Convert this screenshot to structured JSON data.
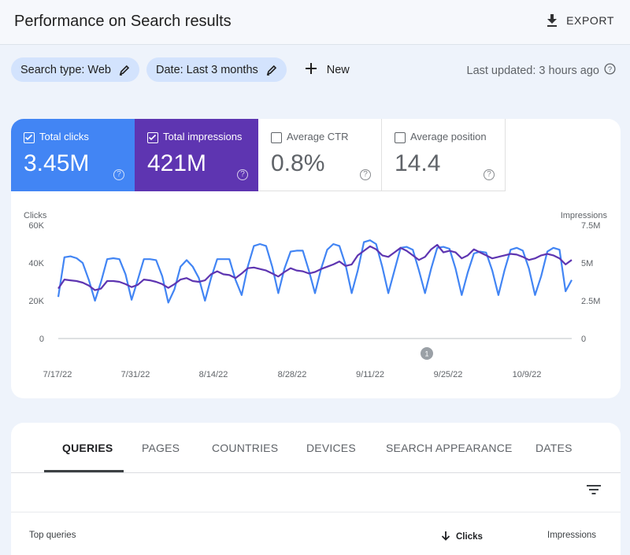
{
  "header": {
    "title": "Performance on Search results",
    "export_label": "EXPORT",
    "export_icon": "download-icon"
  },
  "filters": {
    "search_type": "Search type: Web",
    "date": "Date: Last 3 months",
    "new_label": "New",
    "last_updated": "Last updated: 3 hours ago"
  },
  "metrics": [
    {
      "label": "Total clicks",
      "value": "3.45M",
      "checked": true,
      "color": "#4285f4"
    },
    {
      "label": "Total impressions",
      "value": "421M",
      "checked": true,
      "color": "#5e35b1"
    },
    {
      "label": "Average CTR",
      "value": "0.8%",
      "checked": false
    },
    {
      "label": "Average position",
      "value": "14.4",
      "checked": false
    }
  ],
  "chart_data": {
    "type": "line",
    "left_axis_title": "Clicks",
    "right_axis_title": "Impressions",
    "left_ticks": [
      "0",
      "20K",
      "40K",
      "60K"
    ],
    "right_ticks": [
      "0",
      "2.5M",
      "5M",
      "7.5M"
    ],
    "left_ylim": [
      0,
      60000
    ],
    "right_ylim": [
      0,
      7500000
    ],
    "x_ticks": [
      "7/17/22",
      "7/31/22",
      "8/14/22",
      "8/28/22",
      "9/11/22",
      "9/25/22",
      "10/9/22"
    ],
    "annotation": "1",
    "series": [
      {
        "axis": "left",
        "color": "#4285f4",
        "values": [
          22000,
          43000,
          43500,
          42500,
          40000,
          31000,
          20000,
          30000,
          42000,
          42500,
          42000,
          34000,
          20500,
          31000,
          42000,
          42000,
          41500,
          33000,
          19000,
          26000,
          38000,
          41500,
          38000,
          32000,
          20000,
          32000,
          42000,
          42000,
          42000,
          31000,
          23000,
          38000,
          49000,
          50000,
          49000,
          38000,
          24000,
          37000,
          46000,
          46500,
          46500,
          36000,
          24000,
          37000,
          47000,
          50000,
          49000,
          39000,
          24000,
          36000,
          51000,
          52000,
          50000,
          38000,
          24000,
          36000,
          48000,
          48500,
          47000,
          36000,
          24000,
          37000,
          48000,
          48500,
          47500,
          37000,
          23000,
          35000,
          45000,
          46000,
          45500,
          36000,
          23000,
          36000,
          47000,
          48000,
          46500,
          37000,
          23000,
          33000,
          46000,
          48000,
          47000,
          25000,
          31000
        ]
      },
      {
        "axis": "right",
        "color": "#5e35b1",
        "values": [
          3300000,
          3900000,
          3850000,
          3800000,
          3700000,
          3500000,
          3200000,
          3300000,
          3800000,
          3800000,
          3750000,
          3600000,
          3400000,
          3550000,
          3900000,
          3850000,
          3750000,
          3600000,
          3350000,
          3600000,
          3900000,
          4000000,
          3800000,
          3750000,
          3850000,
          4250000,
          4450000,
          4250000,
          4200000,
          4000000,
          4300000,
          4650000,
          4700000,
          4600000,
          4500000,
          4300000,
          4100000,
          4400000,
          4650000,
          4500000,
          4450000,
          4300000,
          4400000,
          4600000,
          4750000,
          4900000,
          5100000,
          4800000,
          4900000,
          5500000,
          5800000,
          6100000,
          5900000,
          5500000,
          5400000,
          5700000,
          6000000,
          5800000,
          5500000,
          5200000,
          5400000,
          5900000,
          6200000,
          5700000,
          5800000,
          5700000,
          5300000,
          5500000,
          5900000,
          5700000,
          5500000,
          5300000,
          5400000,
          5500000,
          5600000,
          5550000,
          5400000,
          5200000,
          5300000,
          5500000,
          5600000,
          5500000,
          5300000,
          4900000,
          5200000
        ]
      }
    ]
  },
  "tabs": [
    "QUERIES",
    "PAGES",
    "COUNTRIES",
    "DEVICES",
    "SEARCH APPEARANCE",
    "DATES"
  ],
  "table": {
    "col_query": "Top queries",
    "col_clicks": "Clicks",
    "col_impressions": "Impressions",
    "sort_icon": "arrow-down-icon",
    "filter_icon": "filter-list-icon"
  }
}
